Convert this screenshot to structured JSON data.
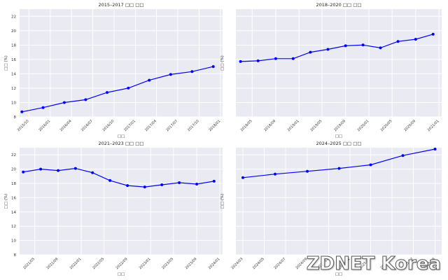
{
  "colors": {
    "panel_bg": "#eaeaf2",
    "grid": "#ffffff",
    "line": "#0000ff",
    "text": "#333333"
  },
  "watermark": "ZDNET Korea",
  "chart_data": [
    {
      "type": "line",
      "title": "2015–2017 □□ □□",
      "xlabel": "□□",
      "ylabel": "□□ (%)",
      "ylim": [
        8,
        23
      ],
      "yticks": [
        8,
        10,
        12,
        14,
        16,
        18,
        20,
        22
      ],
      "xlim": [
        "2015-08-22",
        "2018-01-10"
      ],
      "xticks": [
        "2015/10",
        "2016/01",
        "2016/04",
        "2016/07",
        "2016/10",
        "2017/01",
        "2017/04",
        "2017/07",
        "2017/10",
        "2018/01"
      ],
      "grid": true,
      "series": [
        {
          "x": [
            "2015-09-01",
            "2015-12-01",
            "2016-03-01",
            "2016-06-01",
            "2016-09-01",
            "2016-12-01",
            "2017-03-01",
            "2017-06-01",
            "2017-09-01",
            "2017-12-01"
          ],
          "values": [
            8.7,
            9.3,
            10.0,
            10.4,
            11.4,
            12.0,
            13.1,
            13.9,
            14.3,
            15.0
          ]
        }
      ]
    },
    {
      "type": "line",
      "title": "2018–2020 □□ □□",
      "xlabel": "□□",
      "ylabel": "□□ (%)",
      "ylim": [
        8,
        23
      ],
      "yticks": [],
      "xlim": [
        "2018-02-05",
        "2021-01-15"
      ],
      "xticks": [
        "2018/05",
        "2018/09",
        "2019/01",
        "2019/05",
        "2019/09",
        "2020/01",
        "2020/05",
        "2020/09",
        "2021/01"
      ],
      "grid": true,
      "series": [
        {
          "x": [
            "2018-03-01",
            "2018-06-01",
            "2018-09-01",
            "2018-12-01",
            "2019-03-01",
            "2019-06-01",
            "2019-09-01",
            "2019-12-01",
            "2020-03-01",
            "2020-06-01",
            "2020-09-01",
            "2020-12-01"
          ],
          "values": [
            15.7,
            15.8,
            16.1,
            16.1,
            17.0,
            17.4,
            17.9,
            18.0,
            17.6,
            18.5,
            18.8,
            19.5
          ]
        }
      ]
    },
    {
      "type": "line",
      "title": "2021–2023 □□ □□",
      "xlabel": "□□",
      "ylabel": "□□ (%)",
      "ylim": [
        8,
        23
      ],
      "yticks": [
        8,
        10,
        12,
        14,
        16,
        18,
        20,
        22
      ],
      "xlim": [
        "2021-02-10",
        "2024-01-15"
      ],
      "xticks": [
        "2021/05",
        "2021/09",
        "2022/01",
        "2022/05",
        "2022/09",
        "2023/01",
        "2023/05",
        "2023/09",
        "2024/01"
      ],
      "grid": true,
      "series": [
        {
          "x": [
            "2021-03-01",
            "2021-06-01",
            "2021-09-01",
            "2021-12-01",
            "2022-03-01",
            "2022-06-01",
            "2022-09-01",
            "2022-12-01",
            "2023-03-01",
            "2023-06-01",
            "2023-09-01",
            "2023-12-01"
          ],
          "values": [
            19.6,
            20.0,
            19.8,
            20.1,
            19.5,
            18.4,
            17.7,
            17.5,
            17.8,
            18.1,
            17.9,
            18.3
          ]
        }
      ]
    },
    {
      "type": "line",
      "title": "2024–2025 □□ □□",
      "xlabel": "□□",
      "ylabel": "□□ (%)",
      "ylim": [
        8,
        23
      ],
      "yticks": [],
      "xlim": [
        "2024-02-10",
        "2025-09-20"
      ],
      "xticks": [
        "2024/03",
        "2024/05",
        "2024/07",
        "2024/09",
        "2024/11",
        "2025/01",
        "2025/03",
        "2025/05",
        "2025/07",
        "2025/09"
      ],
      "grid": true,
      "series": [
        {
          "x": [
            "2024-03-01",
            "2024-06-01",
            "2024-09-01",
            "2024-12-01",
            "2025-03-01",
            "2025-06-01",
            "2025-09-01"
          ],
          "values": [
            18.8,
            19.3,
            19.7,
            20.1,
            20.6,
            21.9,
            22.8
          ]
        }
      ]
    }
  ]
}
